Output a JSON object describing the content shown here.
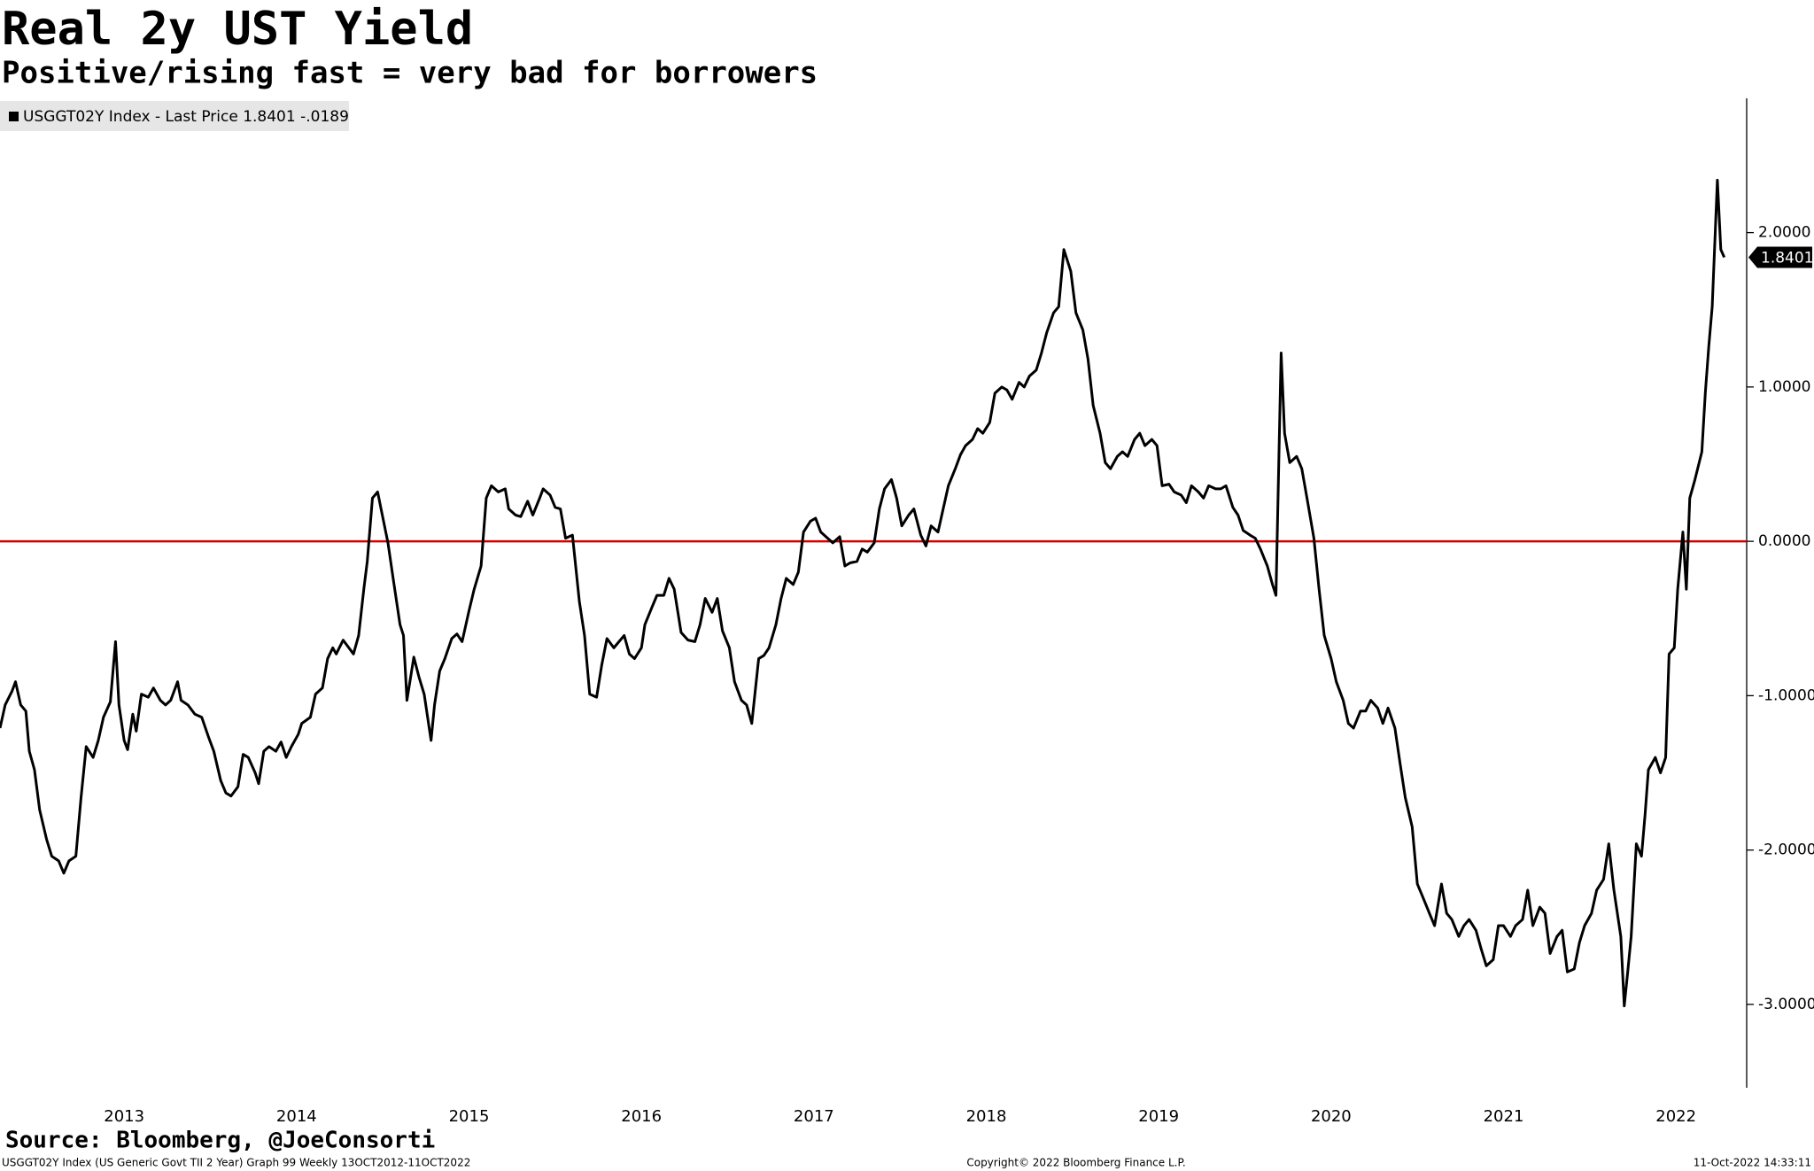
{
  "chart_data": {
    "type": "line",
    "title": "Real 2y UST Yield",
    "subtitle": "Positive/rising fast = very bad for borrowers",
    "source": "Source: Bloomberg, @JoeConsorti",
    "footer_left": "USGGT02Y Index (US Generic Govt TII 2 Year) Graph 99  Weekly 13OCT2012-11OCT2022",
    "footer_center": "Copyright© 2022 Bloomberg Finance L.P.",
    "footer_right": "11-Oct-2022 14:33:11",
    "last_label": "1.8401",
    "reference_line": {
      "value": 0,
      "color": "#d40000"
    },
    "xlim": [
      2012.78,
      2022.91
    ],
    "ylim": [
      -3.54,
      2.87
    ],
    "xticks": [
      {
        "value": 2013.5,
        "label": "2013"
      },
      {
        "value": 2014.5,
        "label": "2014"
      },
      {
        "value": 2015.5,
        "label": "2015"
      },
      {
        "value": 2016.5,
        "label": "2016"
      },
      {
        "value": 2017.5,
        "label": "2017"
      },
      {
        "value": 2018.5,
        "label": "2018"
      },
      {
        "value": 2019.5,
        "label": "2019"
      },
      {
        "value": 2020.5,
        "label": "2020"
      },
      {
        "value": 2021.5,
        "label": "2021"
      },
      {
        "value": 2022.5,
        "label": "2022"
      }
    ],
    "yticks": [
      {
        "value": 2,
        "label": "2.0000"
      },
      {
        "value": 1,
        "label": "1.0000"
      },
      {
        "value": 0,
        "label": "0.0000"
      },
      {
        "value": -1,
        "label": "-1.0000"
      },
      {
        "value": -2,
        "label": "-2.0000"
      },
      {
        "value": -3,
        "label": "-3.0000"
      }
    ],
    "legend": "top-left",
    "x": [
      2012.78,
      2012.81,
      2012.85,
      2012.87,
      2012.9,
      2012.93,
      2012.95,
      2012.98,
      2013.01,
      2013.05,
      2013.08,
      2013.12,
      2013.15,
      2013.18,
      2013.22,
      2013.25,
      2013.28,
      2013.32,
      2013.35,
      2013.38,
      2013.42,
      2013.45,
      2013.47,
      2013.5,
      2013.52,
      2013.55,
      2013.57,
      2013.6,
      2013.64,
      2013.67,
      2013.71,
      2013.74,
      2013.77,
      2013.81,
      2013.83,
      2013.87,
      2013.91,
      2013.95,
      2013.99,
      2014.02,
      2014.06,
      2014.09,
      2014.12,
      2014.16,
      2014.19,
      2014.22,
      2014.26,
      2014.28,
      2014.31,
      2014.34,
      2014.38,
      2014.41,
      2014.44,
      2014.47,
      2014.51,
      2014.53,
      2014.58,
      2014.61,
      2014.65,
      2014.68,
      2014.71,
      2014.73,
      2014.77,
      2014.79,
      2014.83,
      2014.86,
      2014.89,
      2014.91,
      2014.94,
      2014.97,
      2014.99,
      2015.03,
      2015.06,
      2015.1,
      2015.12,
      2015.14,
      2015.18,
      2015.21,
      2015.24,
      2015.28,
      2015.3,
      2015.33,
      2015.36,
      2015.4,
      2015.43,
      2015.46,
      2015.5,
      2015.53,
      2015.57,
      2015.6,
      2015.63,
      2015.67,
      2015.71,
      2015.73,
      2015.77,
      2015.8,
      2015.84,
      2015.87,
      2015.91,
      2015.93,
      2015.97,
      2016.0,
      2016.03,
      2016.06,
      2016.1,
      2016.14,
      2016.17,
      2016.2,
      2016.24,
      2016.27,
      2016.3,
      2016.34,
      2016.37,
      2016.4,
      2016.43,
      2016.46,
      2016.5,
      2016.52,
      2016.56,
      2016.59,
      2016.63,
      2016.66,
      2016.69,
      2016.73,
      2016.77,
      2016.81,
      2016.84,
      2016.87,
      2016.91,
      2016.94,
      2016.97,
      2017.01,
      2017.04,
      2017.08,
      2017.11,
      2017.14,
      2017.18,
      2017.21,
      2017.24,
      2017.28,
      2017.31,
      2017.34,
      2017.38,
      2017.41,
      2017.44,
      2017.48,
      2017.51,
      2017.54,
      2017.58,
      2017.61,
      2017.65,
      2017.68,
      2017.71,
      2017.75,
      2017.78,
      2017.81,
      2017.85,
      2017.88,
      2017.91,
      2017.95,
      2017.98,
      2018.01,
      2018.05,
      2018.08,
      2018.12,
      2018.15,
      2018.18,
      2018.22,
      2018.25,
      2018.28,
      2018.32,
      2018.35,
      2018.38,
      2018.42,
      2018.45,
      2018.48,
      2018.52,
      2018.55,
      2018.59,
      2018.62,
      2018.65,
      2018.69,
      2018.72,
      2018.75,
      2018.79,
      2018.82,
      2018.85,
      2018.89,
      2018.92,
      2018.95,
      2018.99,
      2019.02,
      2019.06,
      2019.09,
      2019.12,
      2019.16,
      2019.19,
      2019.22,
      2019.26,
      2019.29,
      2019.32,
      2019.36,
      2019.39,
      2019.42,
      2019.46,
      2019.49,
      2019.52,
      2019.56,
      2019.59,
      2019.63,
      2019.66,
      2019.69,
      2019.73,
      2019.76,
      2019.79,
      2019.83,
      2019.86,
      2019.89,
      2019.93,
      2019.96,
      2019.99,
      2020.03,
      2020.06,
      2020.09,
      2020.13,
      2020.16,
      2020.18,
      2020.21,
      2020.23,
      2020.26,
      2020.3,
      2020.33,
      2020.36,
      2020.4,
      2020.43,
      2020.46,
      2020.5,
      2020.53,
      2020.57,
      2020.6,
      2020.63,
      2020.67,
      2020.7,
      2020.73,
      2020.77,
      2020.8,
      2020.83,
      2020.87,
      2020.9,
      2020.93,
      2020.97,
      2021.0,
      2021.03,
      2021.07,
      2021.1,
      2021.14,
      2021.17,
      2021.2,
      2021.24,
      2021.27,
      2021.3,
      2021.34,
      2021.37,
      2021.4,
      2021.44,
      2021.47,
      2021.5,
      2021.54,
      2021.57,
      2021.61,
      2021.64,
      2021.67,
      2021.71,
      2021.74,
      2021.77,
      2021.81,
      2021.84,
      2021.87,
      2021.91,
      2021.94,
      2021.97,
      2022.01,
      2022.04,
      2022.08,
      2022.11,
      2022.14,
      2022.18,
      2022.2,
      2022.22,
      2022.24,
      2022.27,
      2022.3,
      2022.32,
      2022.34,
      2022.38,
      2022.41,
      2022.44,
      2022.46,
      2022.49,
      2022.51,
      2022.54,
      2022.56,
      2022.58,
      2022.61,
      2022.65,
      2022.67,
      2022.69,
      2022.71,
      2022.74,
      2022.76,
      2022.78
    ],
    "series": [
      {
        "name": "USGGT02Y Index - Last Price 1.8401  -.0189",
        "color": "#000000",
        "values": [
          -1.21,
          -1.06,
          -0.97,
          -0.91,
          -1.06,
          -1.1,
          -1.36,
          -1.48,
          -1.74,
          -1.93,
          -2.04,
          -2.07,
          -2.15,
          -2.07,
          -2.04,
          -1.66,
          -1.33,
          -1.4,
          -1.29,
          -1.14,
          -1.04,
          -0.65,
          -1.06,
          -1.29,
          -1.35,
          -1.12,
          -1.23,
          -0.99,
          -1.01,
          -0.95,
          -1.03,
          -1.06,
          -1.03,
          -0.91,
          -1.03,
          -1.06,
          -1.12,
          -1.14,
          -1.27,
          -1.36,
          -1.55,
          -1.63,
          -1.65,
          -1.59,
          -1.38,
          -1.4,
          -1.5,
          -1.57,
          -1.36,
          -1.33,
          -1.36,
          -1.3,
          -1.4,
          -1.33,
          -1.25,
          -1.18,
          -1.14,
          -0.99,
          -0.95,
          -0.76,
          -0.69,
          -0.73,
          -0.64,
          -0.67,
          -0.73,
          -0.61,
          -0.31,
          -0.13,
          0.28,
          0.32,
          0.21,
          -0.01,
          -0.24,
          -0.54,
          -0.61,
          -1.03,
          -0.75,
          -0.88,
          -0.99,
          -1.29,
          -1.06,
          -0.84,
          -0.76,
          -0.63,
          -0.6,
          -0.65,
          -0.45,
          -0.31,
          -0.16,
          0.28,
          0.36,
          0.32,
          0.34,
          0.21,
          0.17,
          0.16,
          0.26,
          0.17,
          0.28,
          0.34,
          0.3,
          0.22,
          0.21,
          0.02,
          0.04,
          -0.39,
          -0.61,
          -0.99,
          -1.01,
          -0.8,
          -0.63,
          -0.69,
          -0.65,
          -0.61,
          -0.73,
          -0.76,
          -0.69,
          -0.54,
          -0.43,
          -0.35,
          -0.35,
          -0.24,
          -0.31,
          -0.59,
          -0.64,
          -0.65,
          -0.54,
          -0.37,
          -0.46,
          -0.37,
          -0.58,
          -0.69,
          -0.91,
          -1.03,
          -1.06,
          -1.18,
          -0.76,
          -0.74,
          -0.69,
          -0.54,
          -0.37,
          -0.24,
          -0.28,
          -0.2,
          0.06,
          0.13,
          0.15,
          0.06,
          0.02,
          -0.01,
          0.03,
          -0.16,
          -0.14,
          -0.13,
          -0.05,
          -0.07,
          -0.01,
          0.21,
          0.34,
          0.4,
          0.28,
          0.1,
          0.17,
          0.21,
          0.04,
          -0.03,
          0.1,
          0.06,
          0.21,
          0.36,
          0.47,
          0.56,
          0.62,
          0.66,
          0.73,
          0.7,
          0.77,
          0.96,
          1.0,
          0.98,
          0.92,
          1.03,
          1.0,
          1.07,
          1.11,
          1.22,
          1.35,
          1.48,
          1.52,
          1.89,
          1.75,
          1.48,
          1.37,
          1.18,
          0.88,
          0.7,
          0.51,
          0.47,
          0.55,
          0.58,
          0.55,
          0.66,
          0.7,
          0.62,
          0.66,
          0.62,
          0.36,
          0.37,
          0.32,
          0.3,
          0.25,
          0.36,
          0.32,
          0.28,
          0.36,
          0.34,
          0.34,
          0.36,
          0.22,
          0.17,
          0.07,
          0.04,
          0.02,
          -0.05,
          -0.16,
          -0.28,
          -0.35,
          1.22,
          0.7,
          0.51,
          0.55,
          0.47,
          0.28,
          0.02,
          -0.31,
          -0.61,
          -0.76,
          -0.91,
          -1.03,
          -1.18,
          -1.21,
          -1.1,
          -1.1,
          -1.03,
          -1.08,
          -1.18,
          -1.08,
          -1.21,
          -1.44,
          -1.66,
          -1.85,
          -2.22,
          -2.3,
          -2.41,
          -2.49,
          -2.22,
          -2.41,
          -2.45,
          -2.56,
          -2.49,
          -2.45,
          -2.52,
          -2.64,
          -2.75,
          -2.71,
          -2.49,
          -2.49,
          -2.56,
          -2.49,
          -2.45,
          -2.26,
          -2.49,
          -2.37,
          -2.41,
          -2.67,
          -2.56,
          -2.52,
          -2.79,
          -2.77,
          -2.6,
          -2.49,
          -2.41,
          -2.26,
          -2.19,
          -1.96,
          -2.26,
          -2.56,
          -3.01,
          -2.79,
          -2.56,
          -1.96,
          -2.04,
          -1.78,
          -1.48,
          -1.4,
          -1.5,
          -1.4,
          -0.73,
          -0.69,
          -0.31,
          0.06,
          -0.31,
          0.28,
          0.4,
          0.58,
          0.96,
          1.26,
          1.52,
          2.34,
          1.89,
          1.8401
        ]
      }
    ]
  }
}
